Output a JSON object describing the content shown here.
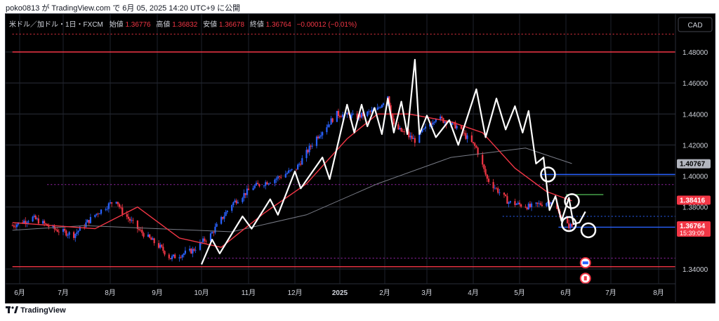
{
  "header": {
    "publish_line": "poko0813 が TradingView.com で 6月 05, 2025 14:20 UTC+9 に公開"
  },
  "legend": {
    "symbol": "米ドル／加ドル・1日・FXCM",
    "open_label": "始値",
    "open": "1.36776",
    "high_label": "高値",
    "high": "1.36832",
    "low_label": "安値",
    "low": "1.36678",
    "close_label": "終値",
    "close": "1.36764",
    "change": "−0.00012 (−0.01%)"
  },
  "currency_button": "CAD",
  "footer": {
    "brand": "TradingView"
  },
  "colors": {
    "background": "#000000",
    "bull": "#2962ff",
    "bear": "#f23645",
    "ma_fast": "#f23645",
    "ma_slow": "#787b86",
    "hline_red": "#f23645",
    "hline_blue": "#2962ff",
    "wave": "#ffffff"
  },
  "chart_data": {
    "type": "line",
    "ylim": [
      1.3235,
      1.495
    ],
    "y_ticks": [
      "1.48000",
      "1.46000",
      "1.44000",
      "1.42000",
      "1.40000",
      "1.38000",
      "1.34000"
    ],
    "x_ticks": [
      "6月",
      "7月",
      "8月",
      "9月",
      "10月",
      "11月",
      "12月",
      "2025",
      "2月",
      "3月",
      "4月",
      "5月",
      "6月",
      "7月",
      "8月"
    ],
    "price_badges": [
      {
        "value": 1.40767,
        "label": "1.40767",
        "kind": "gray"
      },
      {
        "value": 1.38416,
        "label": "1.38416",
        "kind": "red"
      },
      {
        "value": 1.36764,
        "label": "1.36764",
        "sub": "15:39:09",
        "kind": "red"
      }
    ],
    "price_path": [
      [
        "2024-05-27",
        1.368
      ],
      [
        "2024-06-10",
        1.373
      ],
      [
        "2024-06-24",
        1.366
      ],
      [
        "2024-07-08",
        1.362
      ],
      [
        "2024-07-22",
        1.375
      ],
      [
        "2024-08-05",
        1.385
      ],
      [
        "2024-08-08",
        1.378
      ],
      [
        "2024-08-20",
        1.365
      ],
      [
        "2024-09-03",
        1.354
      ],
      [
        "2024-09-10",
        1.347
      ],
      [
        "2024-09-25",
        1.352
      ],
      [
        "2024-10-07",
        1.362
      ],
      [
        "2024-10-21",
        1.382
      ],
      [
        "2024-11-04",
        1.393
      ],
      [
        "2024-11-18",
        1.398
      ],
      [
        "2024-12-02",
        1.405
      ],
      [
        "2024-12-16",
        1.425
      ],
      [
        "2024-12-30",
        1.44
      ],
      [
        "2025-01-13",
        1.438
      ],
      [
        "2025-01-27",
        1.443
      ],
      [
        "2025-02-03",
        1.452
      ],
      [
        "2025-02-07",
        1.432
      ],
      [
        "2025-02-21",
        1.423
      ],
      [
        "2025-03-07",
        1.438
      ],
      [
        "2025-03-21",
        1.432
      ],
      [
        "2025-04-03",
        1.418
      ],
      [
        "2025-04-10",
        1.398
      ],
      [
        "2025-04-24",
        1.383
      ],
      [
        "2025-05-08",
        1.38
      ],
      [
        "2025-05-22",
        1.384
      ],
      [
        "2025-06-02",
        1.368
      ],
      [
        "2025-06-05",
        1.3676
      ]
    ],
    "ma_fast": [
      [
        "2024-05-27",
        1.37
      ],
      [
        "2024-06-24",
        1.368
      ],
      [
        "2024-07-22",
        1.366
      ],
      [
        "2024-08-19",
        1.38
      ],
      [
        "2024-09-16",
        1.36
      ],
      [
        "2024-10-14",
        1.354
      ],
      [
        "2024-11-11",
        1.376
      ],
      [
        "2024-12-09",
        1.395
      ],
      [
        "2025-01-06",
        1.424
      ],
      [
        "2025-01-27",
        1.44
      ],
      [
        "2025-02-17",
        1.44
      ],
      [
        "2025-03-17",
        1.435
      ],
      [
        "2025-04-07",
        1.428
      ],
      [
        "2025-04-28",
        1.405
      ],
      [
        "2025-05-19",
        1.39
      ],
      [
        "2025-06-05",
        1.384
      ]
    ],
    "ma_slow": [
      [
        "2024-05-27",
        1.365
      ],
      [
        "2024-07-15",
        1.368
      ],
      [
        "2024-09-02",
        1.366
      ],
      [
        "2024-10-21",
        1.364
      ],
      [
        "2024-12-09",
        1.375
      ],
      [
        "2025-01-27",
        1.395
      ],
      [
        "2025-03-17",
        1.412
      ],
      [
        "2025-05-05",
        1.418
      ],
      [
        "2025-06-05",
        1.408
      ]
    ],
    "zigzag": [
      [
        "2024-10-01",
        1.343
      ],
      [
        "2024-10-08",
        1.359
      ],
      [
        "2024-10-13",
        1.35
      ],
      [
        "2024-10-28",
        1.374
      ],
      [
        "2024-11-03",
        1.366
      ],
      [
        "2024-11-15",
        1.385
      ],
      [
        "2024-11-20",
        1.375
      ],
      [
        "2024-12-01",
        1.403
      ],
      [
        "2024-12-05",
        1.392
      ],
      [
        "2024-12-20",
        1.412
      ],
      [
        "2024-12-25",
        1.398
      ],
      [
        "2025-01-06",
        1.446
      ],
      [
        "2025-01-11",
        1.428
      ],
      [
        "2025-01-16",
        1.446
      ],
      [
        "2025-01-20",
        1.432
      ],
      [
        "2025-01-25",
        1.444
      ],
      [
        "2025-01-30",
        1.427
      ],
      [
        "2025-02-03",
        1.45
      ],
      [
        "2025-02-07",
        1.428
      ],
      [
        "2025-02-12",
        1.448
      ],
      [
        "2025-02-16",
        1.427
      ],
      [
        "2025-02-21",
        1.475
      ],
      [
        "2025-02-24",
        1.427
      ],
      [
        "2025-03-01",
        1.439
      ],
      [
        "2025-03-07",
        1.425
      ],
      [
        "2025-03-16",
        1.436
      ],
      [
        "2025-03-22",
        1.42
      ],
      [
        "2025-04-03",
        1.456
      ],
      [
        "2025-04-09",
        1.425
      ],
      [
        "2025-04-16",
        1.45
      ],
      [
        "2025-04-22",
        1.43
      ],
      [
        "2025-04-28",
        1.445
      ],
      [
        "2025-05-03",
        1.428
      ],
      [
        "2025-05-07",
        1.442
      ],
      [
        "2025-05-12",
        1.408
      ],
      [
        "2025-05-17",
        1.412
      ],
      [
        "2025-05-21",
        1.378
      ],
      [
        "2025-05-25",
        1.387
      ],
      [
        "2025-05-29",
        1.371
      ],
      [
        "2025-06-03",
        1.386
      ],
      [
        "2025-06-06",
        1.369
      ],
      [
        "2025-06-10",
        1.37
      ],
      [
        "2025-06-14",
        1.377
      ]
    ],
    "horizontal_lines": [
      {
        "value": 1.48,
        "style": "solid",
        "color": "red",
        "from": "2024-05-27",
        "to": "end"
      },
      {
        "value": 1.3415,
        "style": "solid",
        "color": "red",
        "from": "2024-05-27",
        "to": "end"
      },
      {
        "value": 1.4915,
        "style": "dotted",
        "color": "red",
        "from": "2024-05-27",
        "to": "end"
      },
      {
        "value": 1.3945,
        "style": "dotted",
        "color": "purple",
        "from": "2024-06-20",
        "to": "end"
      },
      {
        "value": 1.347,
        "style": "dotted",
        "color": "purple",
        "from": "2024-10-05",
        "to": "end"
      },
      {
        "value": 1.401,
        "style": "solid",
        "color": "blue",
        "from": "2025-05-15",
        "to": "end"
      },
      {
        "value": 1.367,
        "style": "solid",
        "color": "blue",
        "from": "2025-05-27",
        "to": "end"
      },
      {
        "value": 1.374,
        "style": "dotted",
        "color": "blue",
        "from": "2025-04-20",
        "to": "end"
      },
      {
        "value": 1.388,
        "style": "solid",
        "color": "green",
        "from": "2025-06-01",
        "to": "2025-06-26"
      }
    ],
    "circles": [
      {
        "x": "2025-05-20",
        "y": 1.401
      },
      {
        "x": "2025-06-05",
        "y": 1.3838
      },
      {
        "x": "2025-06-03",
        "y": 1.369
      },
      {
        "x": "2025-06-16",
        "y": 1.365
      }
    ],
    "event_markers": [
      {
        "x": "2025-06-14",
        "y": 1.344,
        "kind": "us"
      },
      {
        "x": "2025-06-14",
        "y": 1.334,
        "kind": "ca"
      }
    ]
  }
}
